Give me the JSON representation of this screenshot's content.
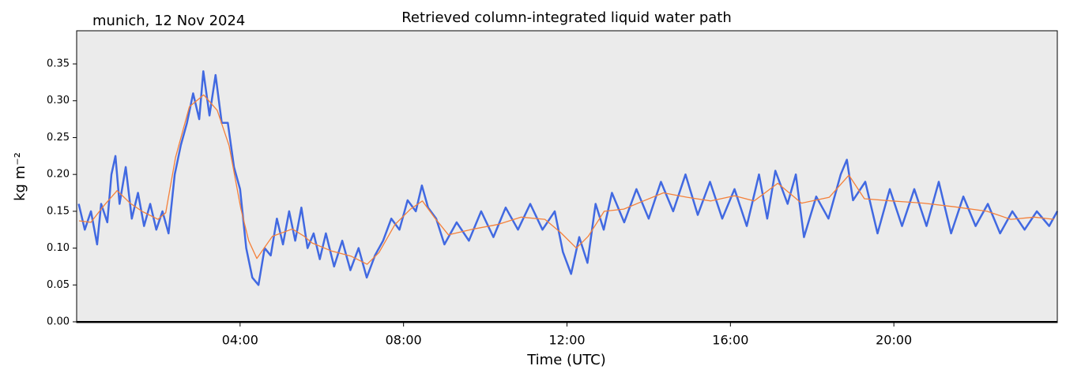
{
  "chart_data": {
    "type": "line",
    "title": "Retrieved column-integrated liquid water path",
    "annotation": "munich, 12 Nov 2024",
    "xlabel": "Time (UTC)",
    "ylabel": "kg m⁻²",
    "xlim": [
      0,
      24
    ],
    "ylim": [
      0,
      0.395
    ],
    "xticks": [
      {
        "value": 4,
        "label": "04:00"
      },
      {
        "value": 8,
        "label": "08:00"
      },
      {
        "value": 12,
        "label": "12:00"
      },
      {
        "value": 16,
        "label": "16:00"
      },
      {
        "value": 20,
        "label": "20:00"
      }
    ],
    "yticks": [
      {
        "value": 0,
        "label": "0.00"
      },
      0.05,
      {
        "value": 0.1,
        "label": "0.10"
      },
      0.15,
      {
        "value": 0.2,
        "label": "0.20"
      },
      0.25,
      {
        "value": 0.3,
        "label": "0.30"
      },
      0.35
    ],
    "background": "#ebebeb",
    "series": [
      {
        "color": "#4169e1",
        "x": [
          0.05,
          0.2,
          0.35,
          0.5,
          0.6,
          0.75,
          0.85,
          0.95,
          1.05,
          1.2,
          1.35,
          1.5,
          1.65,
          1.8,
          1.95,
          2.1,
          2.25,
          2.4,
          2.55,
          2.7,
          2.85,
          3.0,
          3.1,
          3.25,
          3.4,
          3.55,
          3.7,
          3.85,
          4.0,
          4.15,
          4.3,
          4.45,
          4.6,
          4.75,
          4.9,
          5.05,
          5.2,
          5.35,
          5.5,
          5.65,
          5.8,
          5.95,
          6.1,
          6.3,
          6.5,
          6.7,
          6.9,
          7.1,
          7.3,
          7.5,
          7.7,
          7.9,
          8.1,
          8.3,
          8.45,
          8.6,
          8.8,
          9.0,
          9.3,
          9.6,
          9.9,
          10.2,
          10.5,
          10.8,
          11.1,
          11.4,
          11.7,
          11.9,
          12.1,
          12.3,
          12.5,
          12.7,
          12.9,
          13.1,
          13.4,
          13.7,
          14.0,
          14.3,
          14.6,
          14.9,
          15.2,
          15.5,
          15.8,
          16.1,
          16.4,
          16.7,
          16.9,
          17.1,
          17.4,
          17.6,
          17.8,
          18.1,
          18.4,
          18.7,
          18.85,
          19.0,
          19.3,
          19.6,
          19.9,
          20.2,
          20.5,
          20.8,
          21.1,
          21.4,
          21.7,
          22.0,
          22.3,
          22.6,
          22.9,
          23.2,
          23.5,
          23.8,
          24.0
        ],
        "values": [
          0.16,
          0.125,
          0.15,
          0.105,
          0.16,
          0.135,
          0.2,
          0.225,
          0.16,
          0.21,
          0.14,
          0.175,
          0.13,
          0.16,
          0.125,
          0.15,
          0.12,
          0.2,
          0.24,
          0.27,
          0.31,
          0.275,
          0.34,
          0.28,
          0.335,
          0.27,
          0.27,
          0.21,
          0.18,
          0.1,
          0.06,
          0.05,
          0.1,
          0.09,
          0.14,
          0.105,
          0.15,
          0.11,
          0.155,
          0.1,
          0.12,
          0.085,
          0.12,
          0.075,
          0.11,
          0.07,
          0.1,
          0.06,
          0.09,
          0.11,
          0.14,
          0.125,
          0.165,
          0.15,
          0.185,
          0.155,
          0.14,
          0.105,
          0.135,
          0.11,
          0.15,
          0.115,
          0.155,
          0.125,
          0.16,
          0.125,
          0.15,
          0.095,
          0.065,
          0.115,
          0.08,
          0.16,
          0.125,
          0.175,
          0.135,
          0.18,
          0.14,
          0.19,
          0.15,
          0.2,
          0.145,
          0.19,
          0.14,
          0.18,
          0.13,
          0.2,
          0.14,
          0.205,
          0.16,
          0.2,
          0.115,
          0.17,
          0.14,
          0.2,
          0.22,
          0.165,
          0.19,
          0.12,
          0.18,
          0.13,
          0.18,
          0.13,
          0.19,
          0.12,
          0.17,
          0.13,
          0.16,
          0.12,
          0.15,
          0.125,
          0.15,
          0.13,
          0.15
        ]
      },
      {
        "color": "#f4803a",
        "x": [
          0.06,
          0.35,
          0.64,
          0.99,
          1.31,
          1.6,
          1.99,
          2.18,
          2.42,
          2.76,
          3.11,
          3.44,
          3.73,
          4.02,
          4.21,
          4.41,
          4.79,
          5.28,
          5.57,
          5.76,
          6.24,
          6.72,
          7.11,
          7.4,
          7.79,
          8.17,
          8.46,
          8.75,
          9.1,
          9.72,
          10.3,
          10.88,
          11.46,
          11.85,
          12.23,
          12.52,
          12.91,
          13.39,
          13.87,
          14.36,
          14.94,
          15.52,
          16.1,
          16.58,
          17.16,
          17.74,
          18.42,
          18.9,
          19.28,
          19.96,
          20.73,
          21.5,
          22.28,
          22.86,
          23.44,
          23.92
        ],
        "values": [
          0.137,
          0.135,
          0.156,
          0.178,
          0.161,
          0.15,
          0.139,
          0.148,
          0.223,
          0.292,
          0.308,
          0.287,
          0.239,
          0.153,
          0.11,
          0.086,
          0.116,
          0.126,
          0.116,
          0.107,
          0.096,
          0.089,
          0.078,
          0.094,
          0.132,
          0.153,
          0.164,
          0.142,
          0.118,
          0.126,
          0.132,
          0.142,
          0.139,
          0.121,
          0.1,
          0.116,
          0.15,
          0.153,
          0.164,
          0.175,
          0.169,
          0.164,
          0.171,
          0.164,
          0.188,
          0.161,
          0.169,
          0.199,
          0.167,
          0.164,
          0.161,
          0.156,
          0.15,
          0.139,
          0.142,
          0.139
        ]
      }
    ]
  }
}
